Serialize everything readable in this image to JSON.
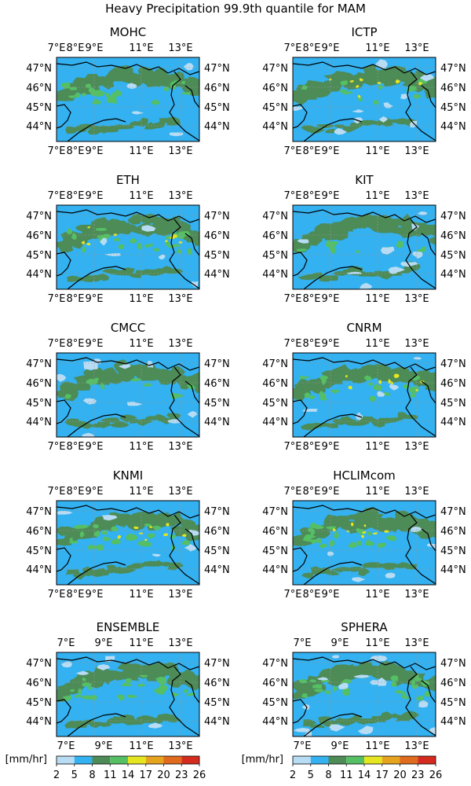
{
  "figure": {
    "title": "Heavy Precipitation 99.9th quantile for MAM"
  },
  "axes": {
    "lat_ticks": [
      "47°N",
      "46°N",
      "45°N",
      "44°N"
    ],
    "lon_ticks_dense": [
      "7°E",
      "8°E",
      "9°E",
      "11°E",
      "13°E"
    ],
    "lon_ticks_sparse": [
      "7°E",
      "9°E",
      "11°E",
      "13°E"
    ]
  },
  "colorbar": {
    "unit_label": "[mm/hr]",
    "boundaries": [
      2,
      5,
      8,
      11,
      14,
      17,
      20,
      23,
      26
    ],
    "colors": [
      "#b7dcf4",
      "#33b1f0",
      "#4d8b57",
      "#55bf64",
      "#e6e620",
      "#e6a31e",
      "#e06a1e",
      "#d42b1e"
    ]
  },
  "chart_data": [
    {
      "type": "heatmap",
      "title": "MOHC",
      "dominant_class": "5-8",
      "notes_levels": [
        "2-5",
        "5-8",
        "8-11",
        "11-14"
      ]
    },
    {
      "type": "heatmap",
      "title": "ICTP",
      "dominant_class": "5-8",
      "notes_levels": [
        "2-5",
        "5-8",
        "8-11",
        "11-14",
        "14-17"
      ]
    },
    {
      "type": "heatmap",
      "title": "ETH",
      "dominant_class": "5-8",
      "notes_levels": [
        "2-5",
        "5-8",
        "8-11",
        "11-14",
        "14-17"
      ]
    },
    {
      "type": "heatmap",
      "title": "KIT",
      "dominant_class": "5-8",
      "notes_levels": [
        "2-5",
        "5-8",
        "8-11",
        "11-14"
      ]
    },
    {
      "type": "heatmap",
      "title": "CMCC",
      "dominant_class": "5-8",
      "notes_levels": [
        "2-5",
        "5-8",
        "8-11",
        "11-14"
      ]
    },
    {
      "type": "heatmap",
      "title": "CNRM",
      "dominant_class": "5-8",
      "notes_levels": [
        "2-5",
        "5-8",
        "8-11",
        "11-14",
        "14-17"
      ]
    },
    {
      "type": "heatmap",
      "title": "KNMI",
      "dominant_class": "5-8",
      "notes_levels": [
        "2-5",
        "5-8",
        "8-11",
        "11-14",
        "14-17"
      ]
    },
    {
      "type": "heatmap",
      "title": "HCLIMcom",
      "dominant_class": "5-8",
      "notes_levels": [
        "2-5",
        "5-8",
        "8-11",
        "11-14",
        "14-17"
      ]
    },
    {
      "type": "heatmap",
      "title": "ENSEMBLE",
      "dominant_class": "5-8",
      "notes_levels": [
        "2-5",
        "5-8",
        "8-11",
        "11-14"
      ]
    },
    {
      "type": "heatmap",
      "title": "SPHERA",
      "dominant_class": "5-8",
      "notes_levels": [
        "2-5",
        "5-8",
        "8-11",
        "11-14"
      ]
    }
  ]
}
